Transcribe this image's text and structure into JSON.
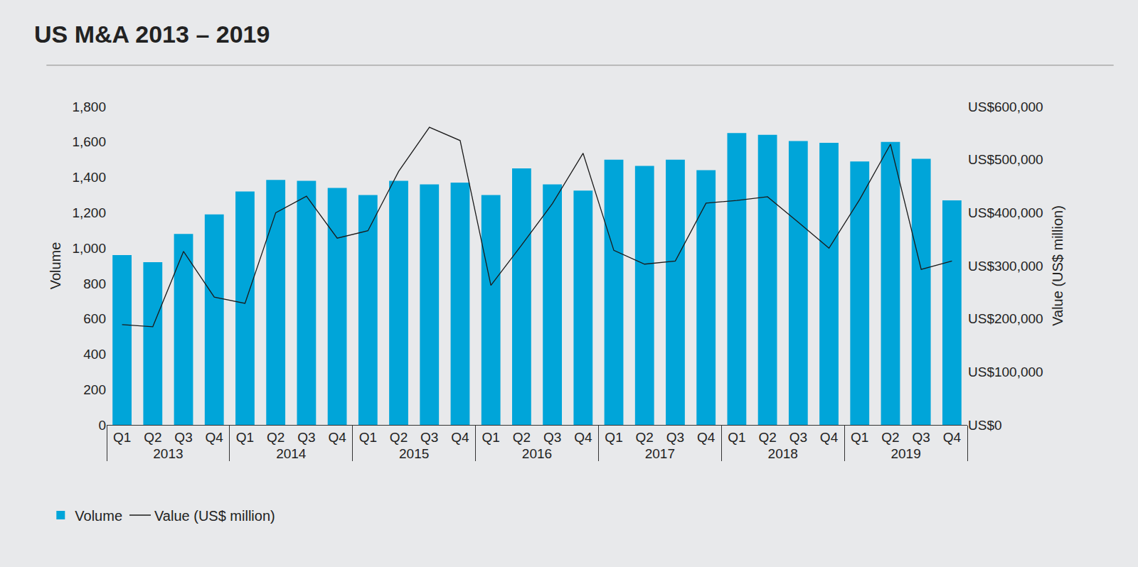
{
  "chart_data": {
    "type": "bar",
    "title": "US M&A 2013 – 2019",
    "categories": [
      [
        "2013",
        "Q1"
      ],
      [
        "2013",
        "Q2"
      ],
      [
        "2013",
        "Q3"
      ],
      [
        "2013",
        "Q4"
      ],
      [
        "2014",
        "Q1"
      ],
      [
        "2014",
        "Q2"
      ],
      [
        "2014",
        "Q3"
      ],
      [
        "2014",
        "Q4"
      ],
      [
        "2015",
        "Q1"
      ],
      [
        "2015",
        "Q2"
      ],
      [
        "2015",
        "Q3"
      ],
      [
        "2015",
        "Q4"
      ],
      [
        "2016",
        "Q1"
      ],
      [
        "2016",
        "Q2"
      ],
      [
        "2016",
        "Q3"
      ],
      [
        "2016",
        "Q4"
      ],
      [
        "2017",
        "Q1"
      ],
      [
        "2017",
        "Q2"
      ],
      [
        "2017",
        "Q3"
      ],
      [
        "2017",
        "Q4"
      ],
      [
        "2018",
        "Q1"
      ],
      [
        "2018",
        "Q2"
      ],
      [
        "2018",
        "Q3"
      ],
      [
        "2018",
        "Q4"
      ],
      [
        "2019",
        "Q1"
      ],
      [
        "2019",
        "Q2"
      ],
      [
        "2019",
        "Q3"
      ],
      [
        "2019",
        "Q4"
      ]
    ],
    "y_label": "Volume",
    "y2_label": "Value (US$ million)",
    "series": [
      {
        "name": "Volume",
        "type": "bar",
        "color": "#00a5d9",
        "values": [
          960,
          920,
          1080,
          1190,
          1320,
          1385,
          1380,
          1340,
          1300,
          1380,
          1360,
          1370,
          1300,
          1450,
          1360,
          1325,
          1500,
          1465,
          1500,
          1440,
          1650,
          1640,
          1605,
          1595,
          1490,
          1600,
          1505,
          1270
        ]
      },
      {
        "name": "Value (US$ million)",
        "type": "line",
        "color": "#1a1a1a",
        "axis": "y2",
        "values": [
          189000,
          185000,
          327000,
          241000,
          229000,
          400000,
          431000,
          352000,
          366000,
          478000,
          561000,
          536000,
          263000,
          339000,
          417000,
          512000,
          329000,
          303000,
          309000,
          418000,
          423000,
          430000,
          382000,
          333000,
          425000,
          529000,
          293000,
          309000
        ]
      }
    ],
    "ylim": [
      0,
      1800
    ],
    "yticks": [
      0,
      200,
      400,
      600,
      800,
      {
        "value": 1000,
        "label": "1,000"
      },
      {
        "value": 1200,
        "label": "1,200"
      },
      {
        "value": 1400,
        "label": "1,400"
      },
      {
        "value": 1600,
        "label": "1,600"
      },
      {
        "value": 1800,
        "label": "1,800"
      }
    ],
    "y2lim": [
      0,
      600000
    ],
    "y2ticks": [
      {
        "value": 0,
        "label": "US$0"
      },
      {
        "value": 100000,
        "label": "US$100,000"
      },
      {
        "value": 200000,
        "label": "US$200,000"
      },
      {
        "value": 300000,
        "label": "US$300,000"
      },
      {
        "value": 400000,
        "label": "US$400,000"
      },
      {
        "value": 500000,
        "label": "US$500,000"
      },
      {
        "value": 600000,
        "label": "US$600,000"
      }
    ],
    "grid": false,
    "legend": "bottom left"
  }
}
